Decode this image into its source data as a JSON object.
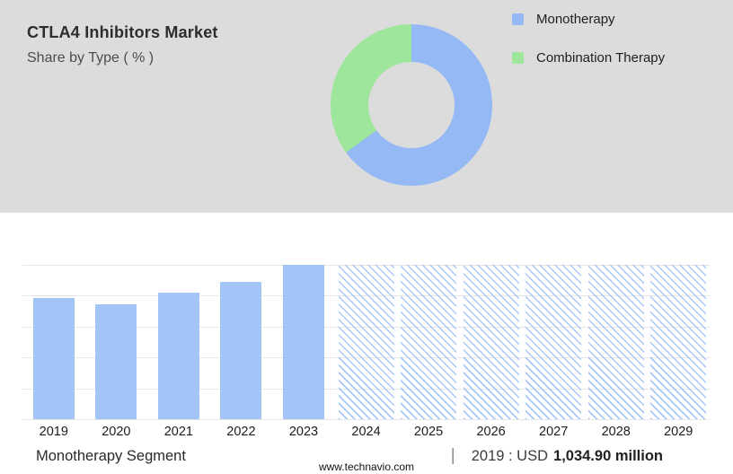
{
  "header": {
    "title": "CTLA4 Inhibitors Market",
    "subtitle": "Share by Type ( % )"
  },
  "chart_data": [
    {
      "type": "pie",
      "donut": true,
      "title": "Share by Type ( % )",
      "labels": [
        "Monotherapy",
        "Combination Therapy"
      ],
      "values": [
        65,
        35
      ],
      "colors": [
        "#94b9f5",
        "#9ee69b"
      ],
      "legend_position": "right"
    },
    {
      "type": "bar",
      "categories": [
        "2019",
        "2020",
        "2021",
        "2022",
        "2023",
        "2024",
        "2025",
        "2026",
        "2027",
        "2028",
        "2029"
      ],
      "values": [
        1034.9,
        985,
        1080,
        1175,
        1320,
        null,
        null,
        null,
        null,
        null,
        null
      ],
      "unit": "USD million",
      "ymax": 1320,
      "forecast_start_index": 5,
      "forecast_style": "hatched-full-height",
      "bar_color": "#a2c4f7",
      "grid": true,
      "xlabel": "",
      "ylabel": ""
    }
  ],
  "footer": {
    "segment_label": "Monotherapy Segment",
    "separator": "|",
    "value_prefix": "2019 : USD",
    "value_bold": "1,034.90 million"
  },
  "site": "www.technavio.com",
  "colors": {
    "top_panel_bg": "#dcdcdc",
    "bottom_panel_bg": "#ffffff",
    "bar_blue": "#a2c4f7",
    "donut_blue": "#94b9f5",
    "donut_green": "#9ee69b"
  }
}
